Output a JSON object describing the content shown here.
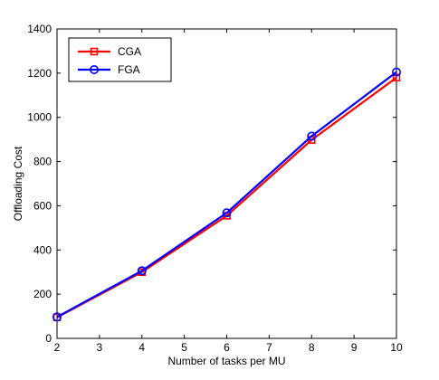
{
  "chart_data": {
    "type": "line",
    "title": "",
    "xlabel": "Number of tasks per MU",
    "ylabel": "Offloading Cost",
    "xlim": [
      2,
      10
    ],
    "ylim": [
      0,
      1400
    ],
    "x_ticks": [
      2,
      3,
      4,
      5,
      6,
      7,
      8,
      9,
      10
    ],
    "y_ticks": [
      0,
      200,
      400,
      600,
      800,
      1000,
      1200,
      1400
    ],
    "grid": false,
    "legend_position": "top-left",
    "x": [
      2,
      4,
      6,
      8,
      10
    ],
    "series": [
      {
        "name": "CGA",
        "values": [
          95,
          300,
          555,
          898,
          1180
        ],
        "color": "#ff0000",
        "marker": "square"
      },
      {
        "name": "FGA",
        "values": [
          97,
          306,
          568,
          915,
          1205
        ],
        "color": "#0000ff",
        "marker": "circle"
      }
    ]
  }
}
